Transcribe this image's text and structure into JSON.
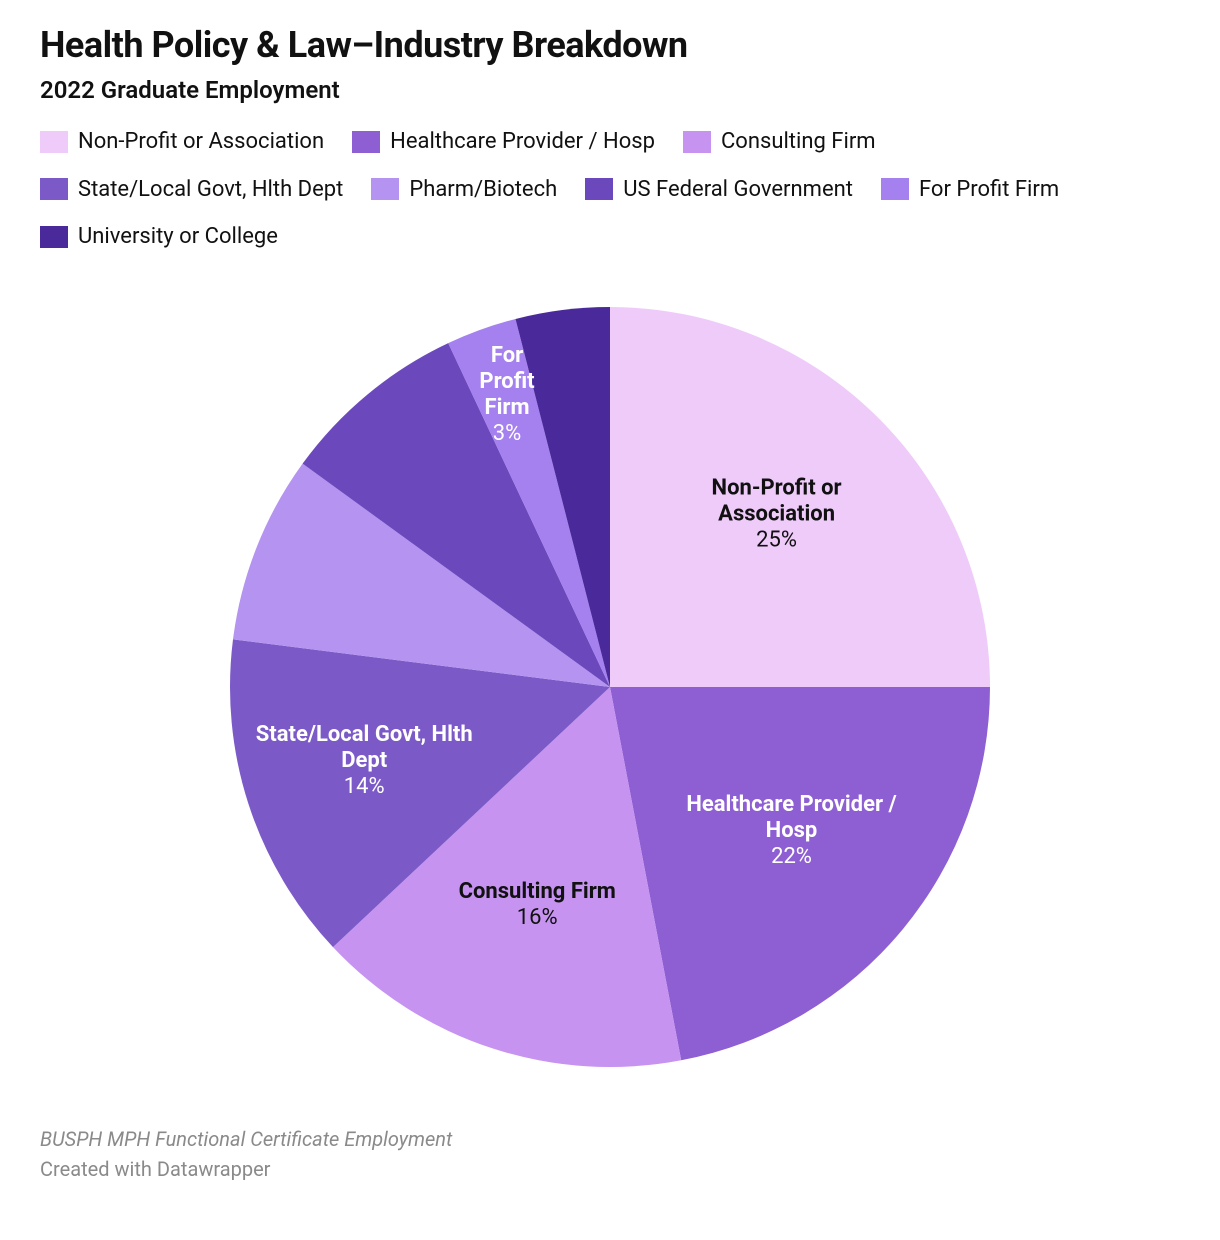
{
  "header": {
    "title": "Health Policy & Law–Industry Breakdown",
    "subtitle": "2022 Graduate Employment"
  },
  "chart": {
    "type": "pie",
    "background_color": "#ffffff",
    "radius": 380,
    "slices": [
      {
        "label": "Non-Profit or Association",
        "value": 25,
        "color": "#efcbfa",
        "label_text_color": "#111111",
        "show_label": true,
        "label_lines": [
          "Non-Profit or",
          "Association"
        ]
      },
      {
        "label": "Healthcare Provider / Hosp",
        "value": 22,
        "color": "#8d5fd3",
        "label_text_color": "#ffffff",
        "show_label": true,
        "label_lines": [
          "Healthcare Provider /",
          "Hosp"
        ]
      },
      {
        "label": "Consulting Firm",
        "value": 16,
        "color": "#c693f0",
        "label_text_color": "#111111",
        "show_label": true,
        "label_lines": [
          "Consulting Firm"
        ]
      },
      {
        "label": "State/Local Govt, Hlth Dept",
        "value": 14,
        "color": "#7b5ac7",
        "label_text_color": "#ffffff",
        "show_label": true,
        "label_lines": [
          "State/Local Govt, Hlth",
          "Dept"
        ]
      },
      {
        "label": "Pharm/Biotech",
        "value": 8,
        "color": "#b493f1",
        "label_text_color": "#ffffff",
        "show_label": false,
        "label_lines": []
      },
      {
        "label": "US Federal Government",
        "value": 8,
        "color": "#6b49bd",
        "label_text_color": "#ffffff",
        "show_label": false,
        "label_lines": []
      },
      {
        "label": "For Profit Firm",
        "value": 3,
        "color": "#a580ef",
        "label_text_color": "#ffffff",
        "show_label": true,
        "label_lines": [
          "For",
          "Profit",
          "Firm"
        ]
      },
      {
        "label": "University or College",
        "value": 4,
        "color": "#4a2a9a",
        "label_text_color": "#ffffff",
        "show_label": false,
        "label_lines": []
      }
    ],
    "label_title_fontsize": 22,
    "label_pct_fontsize": 22
  },
  "legend": {
    "fontsize": 22,
    "swatch_w": 28,
    "swatch_h": 22
  },
  "footer": {
    "note": "BUSPH MPH Functional Certificate Employment",
    "credit": "Created with Datawrapper"
  }
}
